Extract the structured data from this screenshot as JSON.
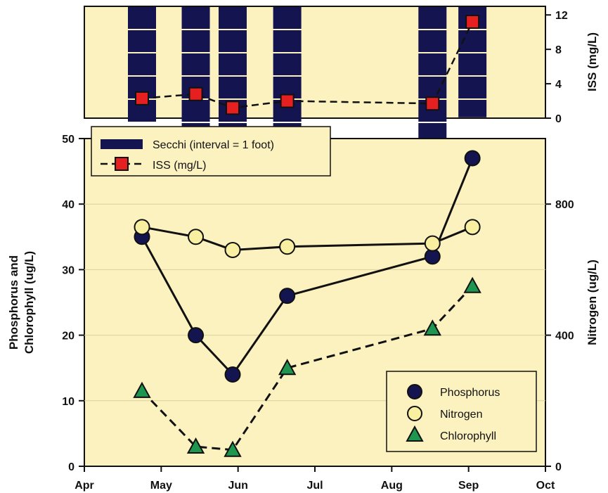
{
  "chart_data": [
    {
      "type": "bar",
      "panel": "top",
      "ylabel_right": "ISS (mg/L)",
      "ylim_right": [
        0,
        13
      ],
      "yticks_right": [
        "0",
        "4",
        "8",
        "12"
      ],
      "x_range": [
        0,
        6
      ],
      "secchi": {
        "name": "Secchi (interval = 1 foot)",
        "color": "#141450",
        "interval_ft": 1,
        "samples": [
          {
            "x": 0.75,
            "depth_ft": 5.8
          },
          {
            "x": 1.45,
            "depth_ft": 7.2
          },
          {
            "x": 1.93,
            "depth_ft": 7.6
          },
          {
            "x": 2.64,
            "depth_ft": 6.3
          },
          {
            "x": 4.53,
            "depth_ft": 6.2
          },
          {
            "x": 5.05,
            "depth_ft": 4.8
          }
        ]
      },
      "iss": {
        "name": "ISS (mg/L)",
        "color": "#e62020",
        "x": [
          0.75,
          1.45,
          1.93,
          2.64,
          4.53,
          5.05
        ],
        "values": [
          2.3,
          2.8,
          1.2,
          2.0,
          1.7,
          11.2
        ]
      }
    },
    {
      "type": "line",
      "panel": "bottom",
      "ylabel": "Phosphorus and Chlorophyll (ug/L)",
      "ylabel_lines": [
        "Phosphorus and",
        "Chlorophyll (ug/L)"
      ],
      "ylabel_right": "Nitrogen (ug/L)",
      "ylim": [
        0,
        50
      ],
      "yticks": [
        "0",
        "10",
        "20",
        "30",
        "40",
        "50"
      ],
      "ylim_right": [
        0,
        1000
      ],
      "yticks_right": [
        "0",
        "400",
        "800"
      ],
      "x_range": [
        0,
        6
      ],
      "xticks": [
        "Apr",
        "May",
        "Jun",
        "Jul",
        "Aug",
        "Sep",
        "Oct"
      ],
      "series": [
        {
          "name": "Phosphorus",
          "axis": "left",
          "marker": "circle",
          "fill": "#141450",
          "x": [
            0.75,
            1.45,
            1.93,
            2.64,
            4.53,
            5.05
          ],
          "values": [
            35,
            20,
            14,
            26,
            32,
            47
          ]
        },
        {
          "name": "Nitrogen",
          "axis": "right",
          "marker": "circle",
          "fill": "#f8f0a0",
          "x": [
            0.75,
            1.45,
            1.93,
            2.64,
            4.53,
            5.05
          ],
          "values": [
            730,
            700,
            660,
            670,
            680,
            730
          ]
        },
        {
          "name": "Chlorophyll",
          "axis": "left",
          "marker": "triangle",
          "fill": "#1e9650",
          "dashed": true,
          "x": [
            0.75,
            1.45,
            1.93,
            2.64,
            4.53,
            5.05
          ],
          "values": [
            11.5,
            3.0,
            2.5,
            15.0,
            21.0,
            27.5
          ]
        }
      ]
    }
  ]
}
